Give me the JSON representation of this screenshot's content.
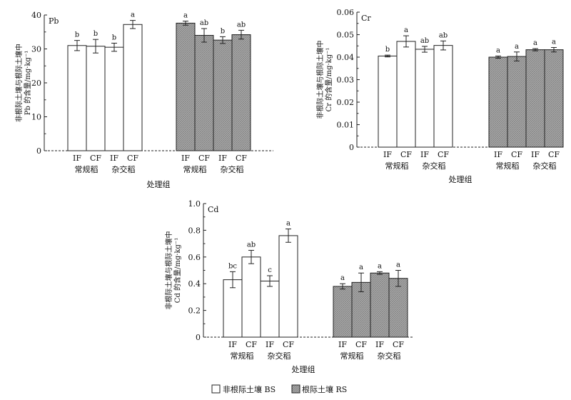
{
  "colors": {
    "bs_fill": "#ffffff",
    "rs_fill": "#aaaaaa",
    "stroke": "#222222"
  },
  "chart_data": [
    {
      "type": "bar",
      "panel_label": "Pb",
      "ylabel": "非根际土壤与根际土壤中 Pb 的含量/mg·kg⁻¹",
      "xlabel": "处理组",
      "ylim": [
        0,
        40
      ],
      "yticks": [
        "0",
        "10",
        "20",
        "30",
        "40"
      ],
      "categories": [
        "IF",
        "CF",
        "IF",
        "CF",
        "IF",
        "CF",
        "IF",
        "CF"
      ],
      "groups": [
        "常规稻",
        "杂交稻",
        "常规稻",
        "杂交稻"
      ],
      "soil": [
        "BS",
        "BS",
        "BS",
        "BS",
        "RS",
        "RS",
        "RS",
        "RS"
      ],
      "values": [
        31.0,
        30.8,
        30.5,
        37.2,
        37.6,
        34.0,
        32.6,
        34.2
      ],
      "errors": [
        1.5,
        2.0,
        1.2,
        1.2,
        0.6,
        2.0,
        1.0,
        1.3
      ],
      "significance": [
        "b",
        "b",
        "b",
        "a",
        "a",
        "ab",
        "b",
        "ab"
      ]
    },
    {
      "type": "bar",
      "panel_label": "Cr",
      "ylabel": "非根际土壤与根际土壤中 Cr 的含量/mg·kg⁻¹",
      "xlabel": "处理组",
      "ylim": [
        0,
        0.06
      ],
      "yticks": [
        "0",
        "0.01",
        "0.02",
        "0.03",
        "0.04",
        "0.05",
        "0.06"
      ],
      "categories": [
        "IF",
        "CF",
        "IF",
        "CF",
        "IF",
        "CF",
        "IF",
        "CF"
      ],
      "groups": [
        "常规稻",
        "杂交稻",
        "常规稻",
        "杂交稻"
      ],
      "soil": [
        "BS",
        "BS",
        "BS",
        "BS",
        "RS",
        "RS",
        "RS",
        "RS"
      ],
      "values": [
        0.0405,
        0.047,
        0.0435,
        0.0452,
        0.04,
        0.0403,
        0.0433,
        0.0433
      ],
      "errors": [
        0.0004,
        0.0025,
        0.0013,
        0.002,
        0.0005,
        0.002,
        0.0005,
        0.001
      ],
      "significance": [
        "b",
        "a",
        "ab",
        "ab",
        "a",
        "a",
        "a",
        "a"
      ]
    },
    {
      "type": "bar",
      "panel_label": "Cd",
      "ylabel": "非根际土壤与根际土壤中 Cd 的含量/mg·kg⁻¹",
      "xlabel": "处理组",
      "ylim": [
        0,
        1.0
      ],
      "yticks": [
        "0",
        "0.2",
        "0.4",
        "0.6",
        "0.8",
        "1.0"
      ],
      "categories": [
        "IF",
        "CF",
        "IF",
        "CF",
        "IF",
        "CF",
        "IF",
        "CF"
      ],
      "groups": [
        "常规稻",
        "杂交稻",
        "常规稻",
        "杂交稻"
      ],
      "soil": [
        "BS",
        "BS",
        "BS",
        "BS",
        "RS",
        "RS",
        "RS",
        "RS"
      ],
      "values": [
        0.43,
        0.6,
        0.42,
        0.76,
        0.38,
        0.41,
        0.48,
        0.44
      ],
      "errors": [
        0.06,
        0.05,
        0.04,
        0.05,
        0.02,
        0.07,
        0.01,
        0.06
      ],
      "significance": [
        "bc",
        "ab",
        "c",
        "a",
        "a",
        "a",
        "a",
        "a"
      ]
    }
  ],
  "legend": [
    {
      "label": "非根际土壤 BS",
      "key": "bs"
    },
    {
      "label": "根际土壤 RS",
      "key": "rs"
    }
  ],
  "legend_position": "bottom-center"
}
